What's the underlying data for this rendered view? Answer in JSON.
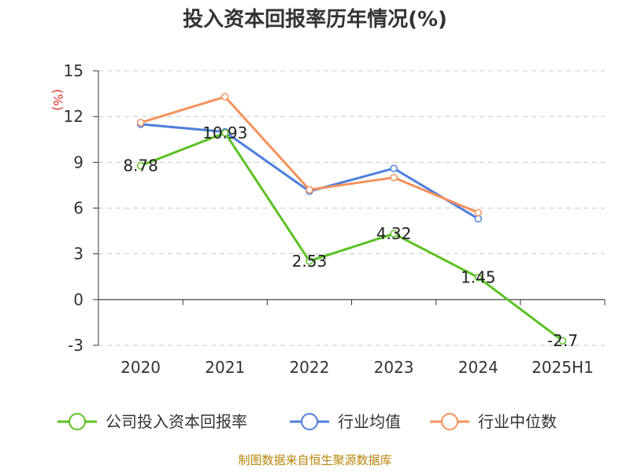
{
  "chart_data": {
    "type": "line",
    "title": "投入资本回报率历年情况(%)",
    "ylabel": "(%)",
    "xlabel": "",
    "categories": [
      "2020",
      "2021",
      "2022",
      "2023",
      "2024",
      "2025H1"
    ],
    "ylim": [
      -3,
      15
    ],
    "yticks": [
      -3,
      0,
      3,
      6,
      9,
      12,
      15
    ],
    "grid": true,
    "legend_position": "bottom",
    "series": [
      {
        "name": "公司投入资本回报率",
        "color": "#5cc224",
        "values": [
          8.78,
          10.93,
          2.53,
          4.32,
          1.45,
          -2.7
        ],
        "labels": [
          "8.78",
          "10.93",
          "2.53",
          "4.32",
          "1.45",
          "-2.7"
        ]
      },
      {
        "name": "行业均值",
        "color": "#4f7fdc",
        "values": [
          11.5,
          11.0,
          7.1,
          8.6,
          5.3,
          null
        ]
      },
      {
        "name": "行业中位数",
        "color": "#f5915c",
        "values": [
          11.6,
          13.3,
          7.2,
          8.0,
          5.7,
          null
        ]
      }
    ]
  },
  "source_note": "制图数据来自恒生聚源数据库"
}
